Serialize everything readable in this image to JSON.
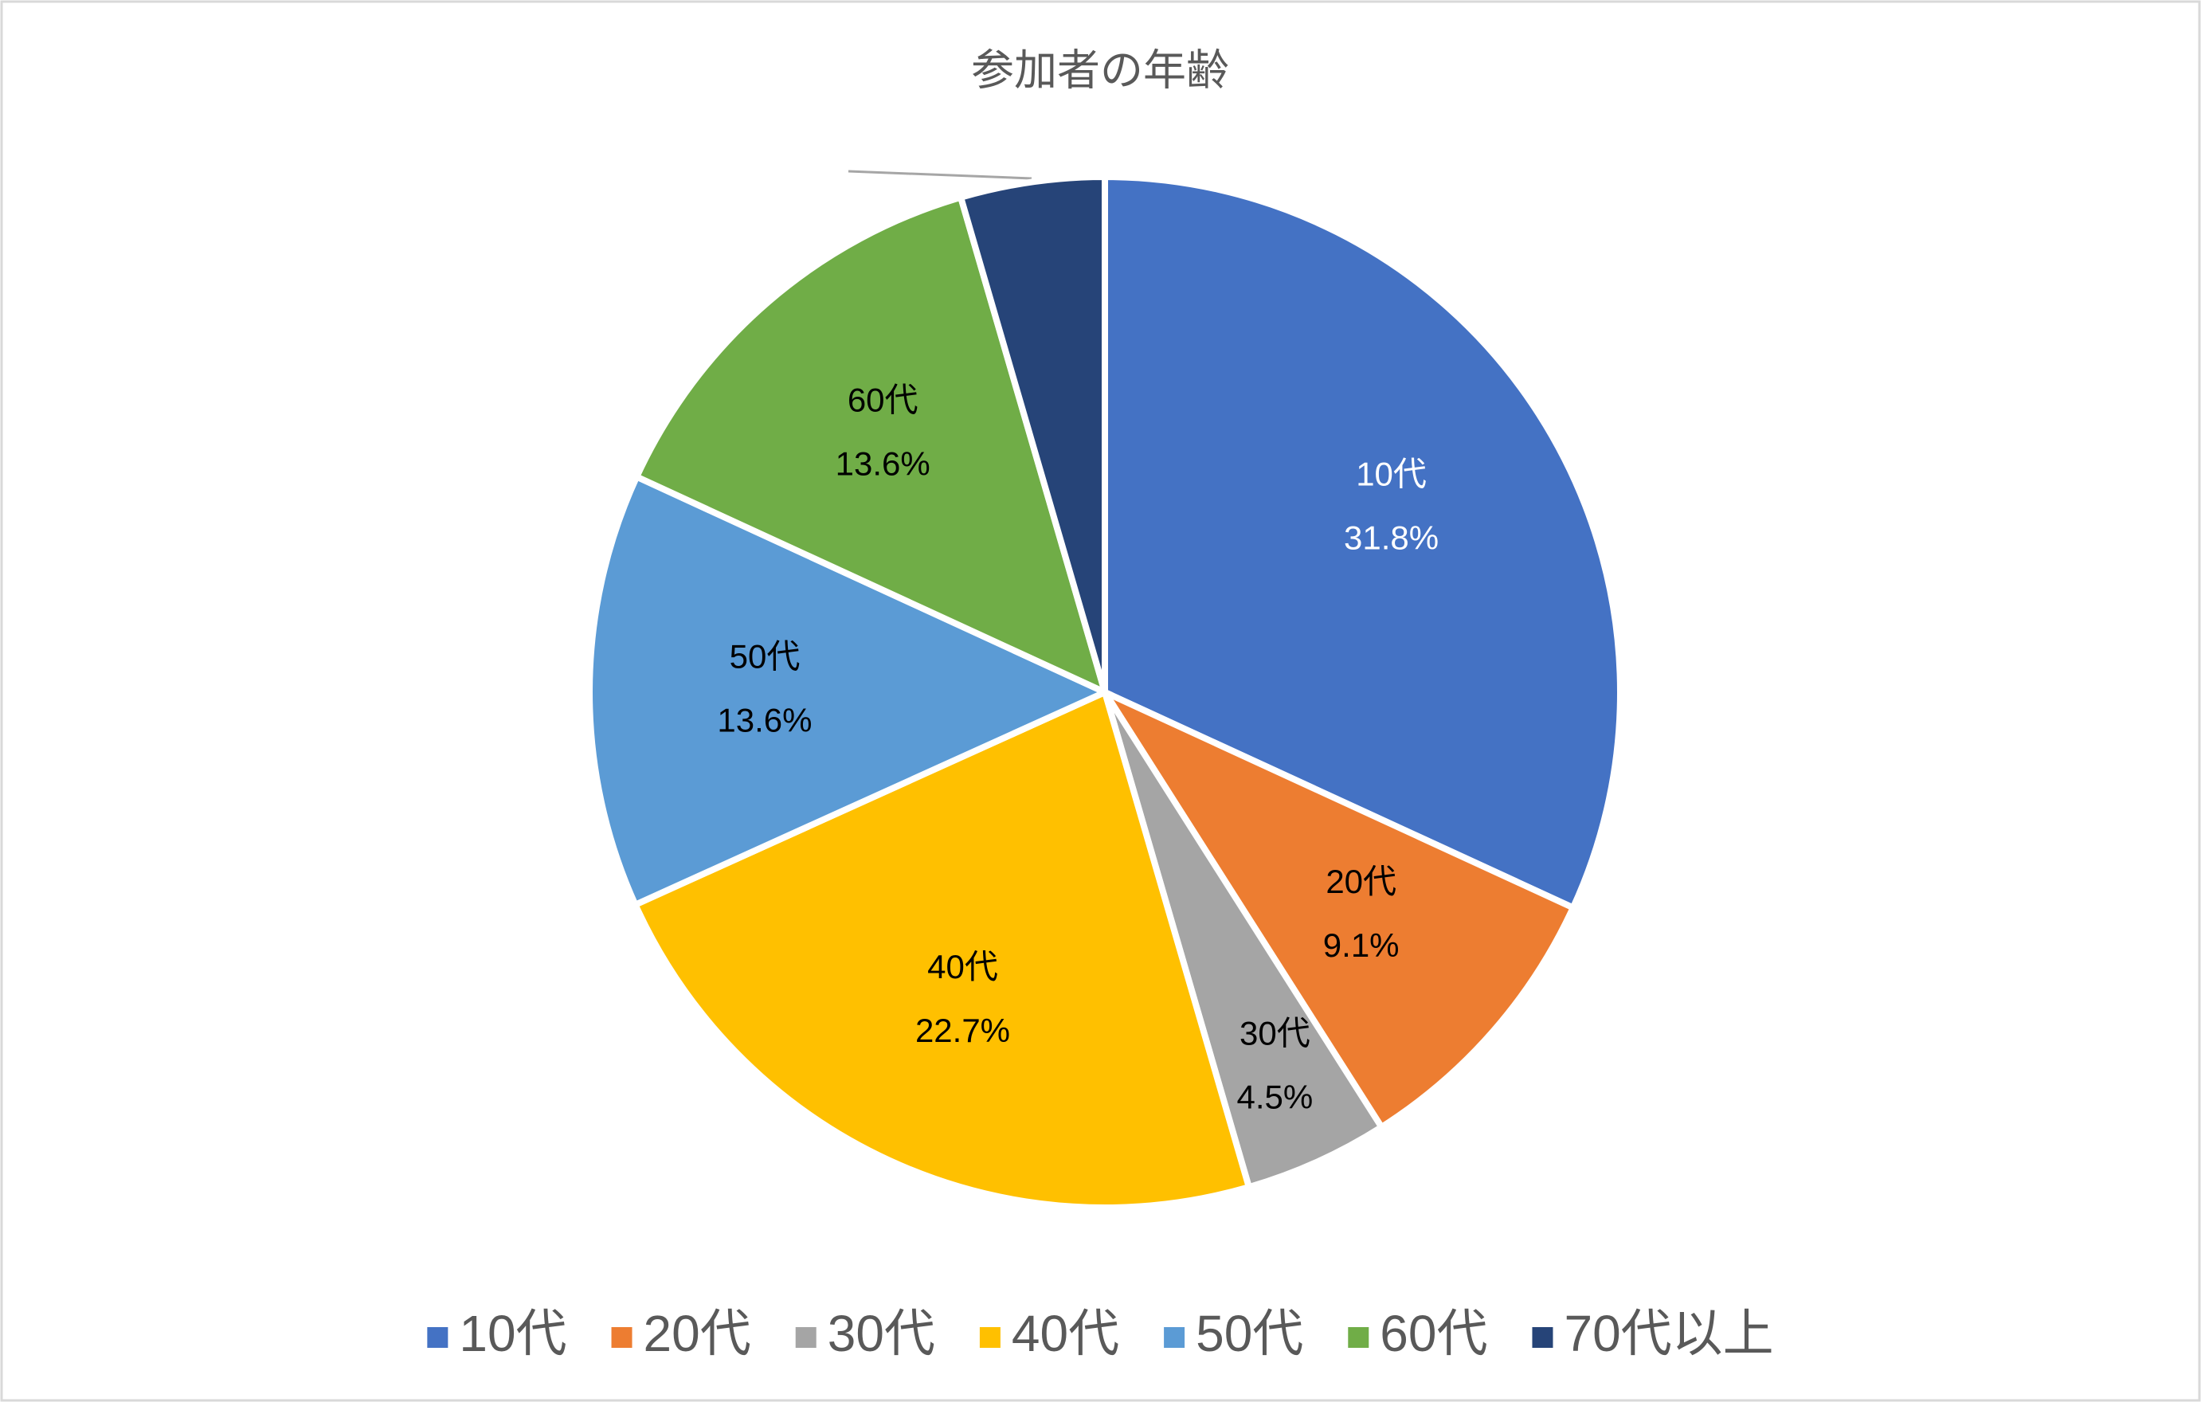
{
  "chart_data": {
    "type": "pie",
    "title": "参加者の年齢",
    "categories": [
      "10代",
      "20代",
      "30代",
      "40代",
      "50代",
      "60代",
      "70代以上"
    ],
    "values": [
      31.8,
      9.1,
      4.5,
      22.7,
      13.6,
      13.6,
      4.5
    ],
    "value_labels": [
      "31.8%",
      "9.1%",
      "4.5%",
      "22.7%",
      "13.6%",
      "13.6%",
      null
    ],
    "colors": [
      "#4472c4",
      "#ed7d31",
      "#a5a5a5",
      "#ffc000",
      "#5b9bd5",
      "#70ad47",
      "#264478"
    ],
    "legend": "bottom"
  }
}
